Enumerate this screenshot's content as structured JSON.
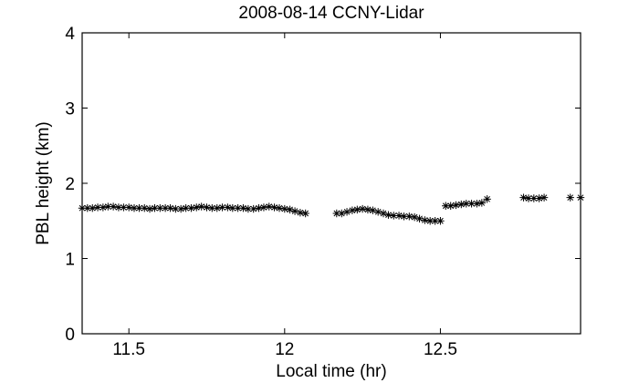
{
  "chart_data": {
    "type": "scatter",
    "title": "2008-08-14 CCNY-Lidar",
    "xlabel": "Local time (hr)",
    "ylabel": "PBL height (km)",
    "xlim": [
      11.35,
      12.95
    ],
    "ylim": [
      0,
      4
    ],
    "xticks": [
      11.5,
      12,
      12.5
    ],
    "xtick_labels": [
      "11.5",
      "12",
      "12.5"
    ],
    "yticks": [
      0,
      1,
      2,
      3,
      4
    ],
    "ytick_labels": [
      "0",
      "1",
      "2",
      "3",
      "4"
    ],
    "grid": false,
    "marker": "*",
    "marker_color": "#000000",
    "series": [
      {
        "points": [
          [
            11.35,
            1.67
          ],
          [
            11.367,
            1.67
          ],
          [
            11.383,
            1.67
          ],
          [
            11.4,
            1.68
          ],
          [
            11.417,
            1.68
          ],
          [
            11.433,
            1.69
          ],
          [
            11.45,
            1.69
          ],
          [
            11.467,
            1.68
          ],
          [
            11.483,
            1.68
          ],
          [
            11.5,
            1.68
          ],
          [
            11.517,
            1.67
          ],
          [
            11.533,
            1.67
          ],
          [
            11.55,
            1.67
          ],
          [
            11.567,
            1.66
          ],
          [
            11.583,
            1.67
          ],
          [
            11.6,
            1.67
          ],
          [
            11.617,
            1.67
          ],
          [
            11.633,
            1.67
          ],
          [
            11.65,
            1.66
          ],
          [
            11.667,
            1.66
          ],
          [
            11.683,
            1.67
          ],
          [
            11.7,
            1.67
          ],
          [
            11.717,
            1.68
          ],
          [
            11.733,
            1.69
          ],
          [
            11.75,
            1.68
          ],
          [
            11.767,
            1.67
          ],
          [
            11.783,
            1.67
          ],
          [
            11.8,
            1.68
          ],
          [
            11.817,
            1.68
          ],
          [
            11.833,
            1.67
          ],
          [
            11.85,
            1.67
          ],
          [
            11.867,
            1.67
          ],
          [
            11.883,
            1.66
          ],
          [
            11.9,
            1.66
          ],
          [
            11.917,
            1.67
          ],
          [
            11.933,
            1.68
          ],
          [
            11.95,
            1.69
          ],
          [
            11.967,
            1.68
          ],
          [
            11.983,
            1.67
          ],
          [
            12.0,
            1.66
          ],
          [
            12.017,
            1.65
          ],
          [
            12.033,
            1.63
          ],
          [
            12.05,
            1.61
          ],
          [
            12.067,
            1.6
          ],
          [
            12.167,
            1.6
          ],
          [
            12.183,
            1.6
          ],
          [
            12.2,
            1.62
          ],
          [
            12.217,
            1.64
          ],
          [
            12.233,
            1.65
          ],
          [
            12.25,
            1.66
          ],
          [
            12.267,
            1.65
          ],
          [
            12.283,
            1.64
          ],
          [
            12.3,
            1.62
          ],
          [
            12.317,
            1.6
          ],
          [
            12.333,
            1.58
          ],
          [
            12.35,
            1.57
          ],
          [
            12.367,
            1.57
          ],
          [
            12.383,
            1.56
          ],
          [
            12.4,
            1.56
          ],
          [
            12.417,
            1.55
          ],
          [
            12.433,
            1.53
          ],
          [
            12.45,
            1.51
          ],
          [
            12.467,
            1.5
          ],
          [
            12.483,
            1.5
          ],
          [
            12.5,
            1.5
          ],
          [
            12.517,
            1.7
          ],
          [
            12.533,
            1.7
          ],
          [
            12.55,
            1.71
          ],
          [
            12.567,
            1.72
          ],
          [
            12.583,
            1.73
          ],
          [
            12.6,
            1.73
          ],
          [
            12.617,
            1.73
          ],
          [
            12.633,
            1.74
          ],
          [
            12.65,
            1.79
          ],
          [
            12.767,
            1.81
          ],
          [
            12.783,
            1.8
          ],
          [
            12.8,
            1.8
          ],
          [
            12.817,
            1.8
          ],
          [
            12.833,
            1.81
          ],
          [
            12.917,
            1.81
          ],
          [
            12.95,
            1.81
          ]
        ]
      }
    ]
  }
}
